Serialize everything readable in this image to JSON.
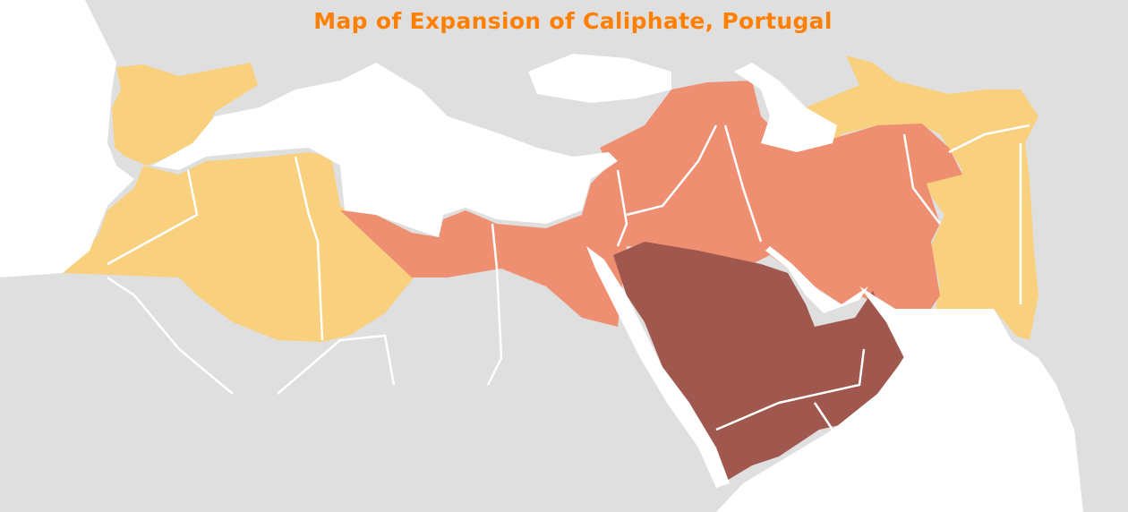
{
  "title": "Map of Expansion of Caliphate, Portugal",
  "colors": {
    "title": "#ff7f00",
    "land": "#e0dfdf",
    "sea": "#ffffff",
    "borders": "#ffffff",
    "region_light": "#f9d07e",
    "region_medium": "#ef8f72",
    "region_dark": "#a0574d"
  }
}
